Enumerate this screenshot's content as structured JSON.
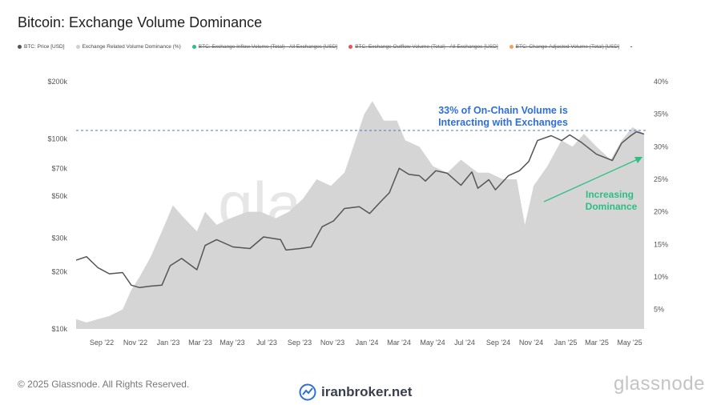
{
  "header": {
    "title": "Bitcoin: Exchange Volume Dominance"
  },
  "legend": [
    {
      "label": "BTC: Price [USD]",
      "color": "#555555",
      "active": true
    },
    {
      "label": "Exchange Related Volume Dominance (%)",
      "color": "#cfcfcf",
      "active": true
    },
    {
      "label": "BTC: Exchange Inflow Volume (Total) - All Exchanges [USD]",
      "color": "#2bbf82",
      "active": false
    },
    {
      "label": "BTC: Exchange Outflow Volume (Total) - All Exchanges [USD]",
      "color": "#e0565b",
      "active": false
    },
    {
      "label": "BTC: Change-Adjusted Volume (Total) [USD]",
      "color": "#f0a35b",
      "active": false
    },
    {
      "label": "-",
      "color": "",
      "active": false
    }
  ],
  "chart_data": {
    "type": "line",
    "title": "Bitcoin: Exchange Volume Dominance",
    "x_ticks": [
      "Sep '22",
      "Nov '22",
      "Jan '23",
      "Mar '23",
      "May '23",
      "Jul '23",
      "Sep '23",
      "Nov '23",
      "Jan '24",
      "Mar '24",
      "May '24",
      "Jul '24",
      "Sep '24",
      "Nov '24",
      "Jan '25",
      "Mar '25",
      "May '25"
    ],
    "y_left": {
      "scale": "log",
      "ticks": [
        "$10k",
        "$20k",
        "$30k",
        "$50k",
        "$70k",
        "$100k",
        "$200k"
      ],
      "tick_values": [
        10000,
        20000,
        30000,
        50000,
        70000,
        100000,
        200000
      ],
      "range": [
        10000,
        200000
      ]
    },
    "y_right": {
      "ticks": [
        "5%",
        "10%",
        "15%",
        "20%",
        "25%",
        "30%",
        "35%",
        "40%"
      ],
      "tick_values": [
        5,
        10,
        15,
        20,
        25,
        30,
        35,
        40
      ],
      "range": [
        2,
        40
      ]
    },
    "series": [
      {
        "name": "BTC: Price [USD]",
        "type": "line",
        "axis": "left",
        "color": "#555555",
        "x": [
          "2022-08-01",
          "2022-08-20",
          "2022-09-10",
          "2022-10-01",
          "2022-10-25",
          "2022-11-10",
          "2022-11-25",
          "2022-12-15",
          "2023-01-05",
          "2023-01-20",
          "2023-02-10",
          "2023-03-10",
          "2023-03-25",
          "2023-04-15",
          "2023-05-15",
          "2023-06-15",
          "2023-07-10",
          "2023-08-10",
          "2023-08-20",
          "2023-09-15",
          "2023-10-05",
          "2023-10-25",
          "2023-11-15",
          "2023-12-05",
          "2024-01-01",
          "2024-01-20",
          "2024-02-10",
          "2024-02-25",
          "2024-03-14",
          "2024-04-01",
          "2024-04-20",
          "2024-05-01",
          "2024-05-20",
          "2024-06-10",
          "2024-07-05",
          "2024-07-25",
          "2024-08-05",
          "2024-08-25",
          "2024-09-06",
          "2024-09-30",
          "2024-10-20",
          "2024-11-06",
          "2024-11-22",
          "2024-12-17",
          "2025-01-05",
          "2025-01-20",
          "2025-02-10",
          "2025-03-10",
          "2025-04-08",
          "2025-04-25",
          "2025-05-10",
          "2025-05-22",
          "2025-06-05"
        ],
        "y": [
          23000,
          24000,
          21000,
          19500,
          19800,
          17000,
          16500,
          16800,
          17000,
          21500,
          23500,
          20500,
          27500,
          29500,
          27000,
          26500,
          30500,
          29500,
          26000,
          26500,
          27000,
          34500,
          37000,
          43000,
          44000,
          40500,
          47000,
          52000,
          70000,
          65000,
          64000,
          60000,
          68000,
          66000,
          57000,
          67000,
          55000,
          61000,
          54000,
          64000,
          68000,
          76000,
          98000,
          104000,
          98000,
          105000,
          96000,
          83000,
          77000,
          95000,
          103000,
          109000,
          106000
        ]
      },
      {
        "name": "Exchange Related Volume Dominance (%)",
        "type": "area",
        "axis": "right",
        "color": "#d5d5d5",
        "x": [
          "2022-08-01",
          "2022-08-20",
          "2022-09-10",
          "2022-10-01",
          "2022-10-25",
          "2022-11-10",
          "2022-11-25",
          "2022-12-15",
          "2023-01-05",
          "2023-01-25",
          "2023-02-15",
          "2023-03-10",
          "2023-03-25",
          "2023-04-15",
          "2023-05-10",
          "2023-06-10",
          "2023-07-05",
          "2023-08-01",
          "2023-08-25",
          "2023-09-20",
          "2023-10-15",
          "2023-11-10",
          "2023-12-05",
          "2023-12-25",
          "2024-01-10",
          "2024-01-25",
          "2024-02-15",
          "2024-03-10",
          "2024-03-25",
          "2024-04-20",
          "2024-05-15",
          "2024-06-10",
          "2024-07-05",
          "2024-08-05",
          "2024-08-25",
          "2024-09-20",
          "2024-10-15",
          "2024-10-30",
          "2024-11-15",
          "2024-12-10",
          "2025-01-05",
          "2025-01-25",
          "2025-02-15",
          "2025-03-10",
          "2025-04-05",
          "2025-04-25",
          "2025-05-15",
          "2025-06-05"
        ],
        "y": [
          3.5,
          3,
          3.5,
          4,
          5,
          8,
          10,
          13,
          17,
          21,
          19,
          17,
          20,
          18,
          19,
          20,
          20,
          19,
          20,
          22,
          25,
          24,
          26,
          31,
          35,
          37,
          34,
          34,
          31,
          30,
          27,
          26,
          28,
          26,
          26,
          25,
          25,
          18,
          24,
          27,
          31,
          30,
          32,
          30,
          28,
          31,
          33,
          32
        ]
      }
    ],
    "annotations": [
      {
        "text_lines": [
          "33% of On-Chain Volume is",
          "Interacting with Exchanges"
        ],
        "color": "#2f6fd8",
        "reference_line_value_pct": 33,
        "style": "dashed"
      },
      {
        "text_lines": [
          "Increasing",
          "Dominance"
        ],
        "color": "#2bbf82"
      }
    ],
    "watermark": "glassnode",
    "grid": false
  },
  "footer": {
    "copyright": "© 2025 Glassnode. All Rights Reserved.",
    "brand": "iranbroker.net",
    "logo": "glassnode"
  }
}
